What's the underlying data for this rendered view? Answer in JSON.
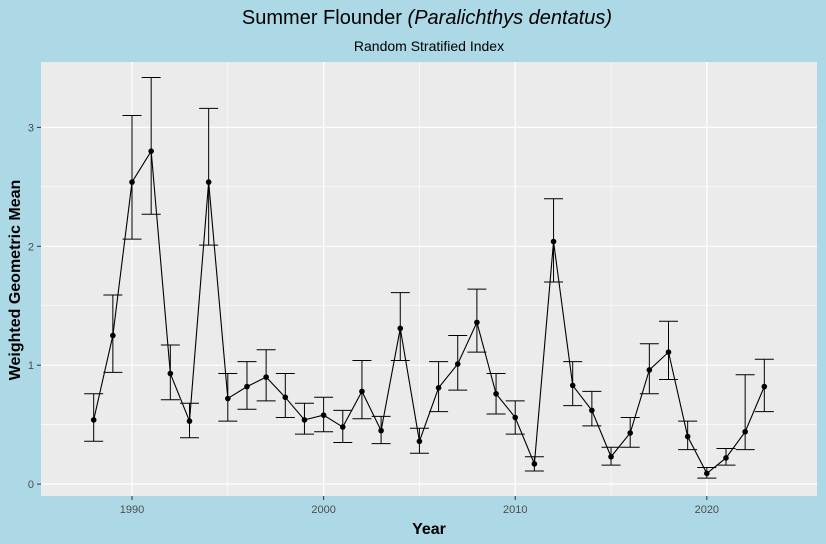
{
  "colors": {
    "figure_background": "#add8e6",
    "panel_background": "#ebebeb",
    "grid": "#ffffff",
    "series": "#000000",
    "tick_text": "#4d4d4d"
  },
  "chart_data": {
    "type": "line",
    "title_main": "Summer Flounder ",
    "title_italic": "(Paralichthys dentatus)",
    "subtitle": "Random Stratified Index",
    "xlabel": "Year",
    "ylabel": "Weighted Geometric Mean",
    "xlim": [
      1985.25,
      2025.75
    ],
    "ylim": [
      -0.1,
      3.55
    ],
    "x_ticks": [
      1990,
      2000,
      2010,
      2020
    ],
    "x_tick_labels": [
      "1990",
      "2000",
      "2010",
      "2020"
    ],
    "y_ticks": [
      0,
      1,
      2,
      3
    ],
    "y_tick_labels": [
      "0",
      "1",
      "2",
      "3"
    ],
    "grid": true,
    "legend": "none",
    "series": [
      {
        "points": [
          {
            "x": 1988,
            "y": 0.54,
            "lo": 0.36,
            "hi": 0.76
          },
          {
            "x": 1989,
            "y": 1.25,
            "lo": 0.94,
            "hi": 1.59
          },
          {
            "x": 1990,
            "y": 2.54,
            "lo": 2.06,
            "hi": 3.1
          },
          {
            "x": 1991,
            "y": 2.8,
            "lo": 2.27,
            "hi": 3.42
          },
          {
            "x": 1992,
            "y": 0.93,
            "lo": 0.71,
            "hi": 1.17
          },
          {
            "x": 1993,
            "y": 0.53,
            "lo": 0.39,
            "hi": 0.68
          },
          {
            "x": 1994,
            "y": 2.54,
            "lo": 2.01,
            "hi": 3.16
          },
          {
            "x": 1995,
            "y": 0.72,
            "lo": 0.53,
            "hi": 0.93
          },
          {
            "x": 1996,
            "y": 0.82,
            "lo": 0.63,
            "hi": 1.03
          },
          {
            "x": 1997,
            "y": 0.9,
            "lo": 0.7,
            "hi": 1.13
          },
          {
            "x": 1998,
            "y": 0.73,
            "lo": 0.56,
            "hi": 0.93
          },
          {
            "x": 1999,
            "y": 0.54,
            "lo": 0.42,
            "hi": 0.68
          },
          {
            "x": 2000,
            "y": 0.58,
            "lo": 0.44,
            "hi": 0.73
          },
          {
            "x": 2001,
            "y": 0.48,
            "lo": 0.35,
            "hi": 0.62
          },
          {
            "x": 2002,
            "y": 0.78,
            "lo": 0.55,
            "hi": 1.04
          },
          {
            "x": 2003,
            "y": 0.45,
            "lo": 0.34,
            "hi": 0.57
          },
          {
            "x": 2004,
            "y": 1.31,
            "lo": 1.04,
            "hi": 1.61
          },
          {
            "x": 2005,
            "y": 0.36,
            "lo": 0.26,
            "hi": 0.47
          },
          {
            "x": 2006,
            "y": 0.81,
            "lo": 0.61,
            "hi": 1.03
          },
          {
            "x": 2007,
            "y": 1.01,
            "lo": 0.79,
            "hi": 1.25
          },
          {
            "x": 2008,
            "y": 1.36,
            "lo": 1.11,
            "hi": 1.64
          },
          {
            "x": 2009,
            "y": 0.76,
            "lo": 0.59,
            "hi": 0.93
          },
          {
            "x": 2010,
            "y": 0.56,
            "lo": 0.42,
            "hi": 0.7
          },
          {
            "x": 2011,
            "y": 0.17,
            "lo": 0.11,
            "hi": 0.23
          },
          {
            "x": 2012,
            "y": 2.04,
            "lo": 1.7,
            "hi": 2.4
          },
          {
            "x": 2013,
            "y": 0.83,
            "lo": 0.66,
            "hi": 1.03
          },
          {
            "x": 2014,
            "y": 0.62,
            "lo": 0.49,
            "hi": 0.78
          },
          {
            "x": 2015,
            "y": 0.23,
            "lo": 0.16,
            "hi": 0.31
          },
          {
            "x": 2016,
            "y": 0.43,
            "lo": 0.31,
            "hi": 0.56
          },
          {
            "x": 2017,
            "y": 0.96,
            "lo": 0.76,
            "hi": 1.18
          },
          {
            "x": 2018,
            "y": 1.11,
            "lo": 0.88,
            "hi": 1.37
          },
          {
            "x": 2019,
            "y": 0.4,
            "lo": 0.29,
            "hi": 0.53
          },
          {
            "x": 2020,
            "y": 0.09,
            "lo": 0.05,
            "hi": 0.14
          },
          {
            "x": 2021,
            "y": 0.22,
            "lo": 0.16,
            "hi": 0.3
          },
          {
            "x": 2022,
            "y": 0.44,
            "lo": 0.29,
            "hi": 0.92
          },
          {
            "x": 2023,
            "y": 0.82,
            "lo": 0.61,
            "hi": 1.05
          }
        ]
      }
    ]
  }
}
